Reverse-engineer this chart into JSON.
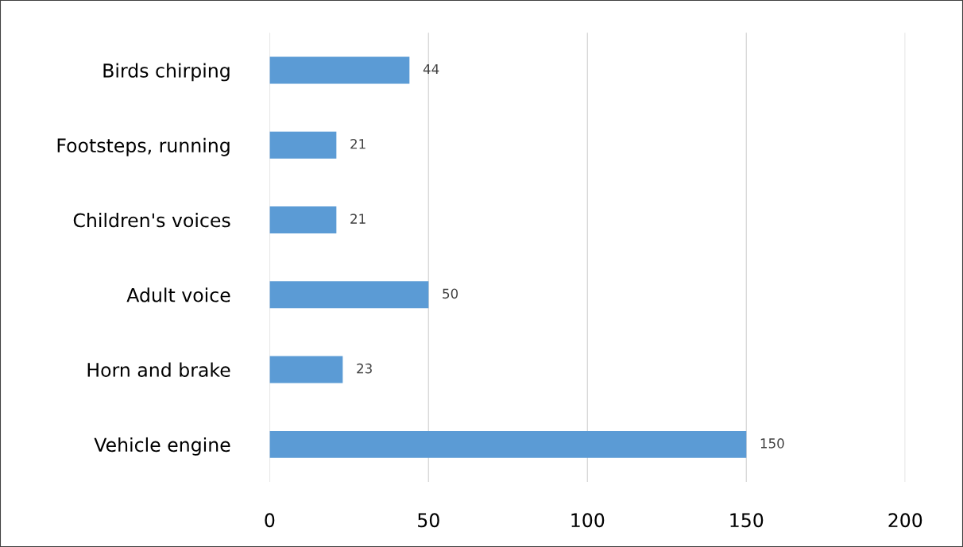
{
  "chart_data": {
    "type": "bar",
    "orientation": "horizontal",
    "categories": [
      "Birds chirping",
      "Footsteps, running",
      "Children's voices",
      "Adult voice",
      "Horn and brake",
      "Vehicle engine"
    ],
    "values": [
      44,
      21,
      21,
      50,
      23,
      150
    ],
    "color": "#5b9bd5",
    "data_labels": true,
    "xlim": [
      0,
      200
    ],
    "xticks": [
      0,
      50,
      100,
      150,
      200
    ],
    "grid": "x",
    "legend": false
  }
}
